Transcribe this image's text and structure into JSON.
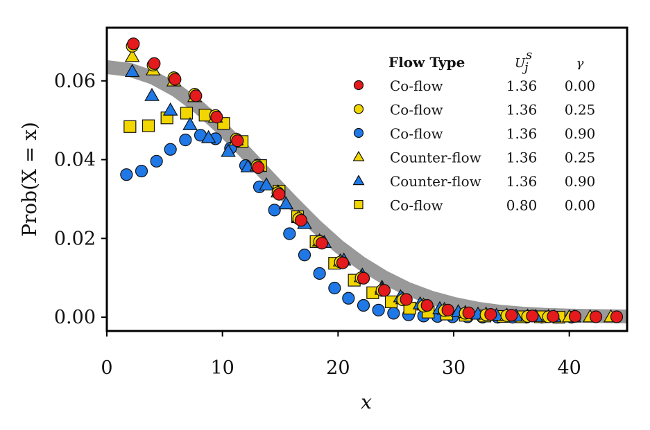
{
  "chart_data": {
    "type": "scatter",
    "xlabel": "x",
    "ylabel": "Prob(X = x)",
    "xlim": [
      0,
      45
    ],
    "ylim": [
      -0.0035,
      0.0735
    ],
    "xticks": [
      0,
      10,
      20,
      30,
      40
    ],
    "yticks": [
      0.0,
      0.02,
      0.04,
      0.06
    ],
    "xtick_labels": [
      "0",
      "10",
      "20",
      "30",
      "40"
    ],
    "ytick_labels": [
      "0.00",
      "0.02",
      "0.04",
      "0.06"
    ],
    "legend_position": "top-right",
    "legend_headers": {
      "flow_type": "Flow Type",
      "u": "U",
      "u_sup": "s",
      "u_sub": "j",
      "gamma": "γ"
    },
    "reference_curve": {
      "label": "gray band",
      "color": "#999999",
      "x": [
        0,
        2,
        4,
        6,
        8,
        10,
        12,
        14,
        16,
        18,
        20,
        22,
        24,
        26,
        28,
        30,
        32,
        34,
        36,
        38,
        40,
        42,
        45
      ],
      "y": [
        0.0635,
        0.0628,
        0.0608,
        0.0576,
        0.0532,
        0.0478,
        0.0418,
        0.0355,
        0.0293,
        0.0234,
        0.0181,
        0.0137,
        0.0101,
        0.0072,
        0.005,
        0.0034,
        0.0022,
        0.0014,
        0.0009,
        0.0006,
        0.0004,
        0.0003,
        0.0002
      ]
    },
    "series": [
      {
        "name": "Co-flow",
        "u": "1.36",
        "gamma": "0.00",
        "marker": "circle",
        "color": "#e41a1c",
        "x": [
          2.3,
          4.1,
          5.9,
          7.7,
          9.5,
          11.3,
          13.1,
          14.9,
          16.8,
          18.6,
          20.4,
          22.2,
          24.0,
          25.9,
          27.7,
          29.5,
          31.3,
          33.2,
          35.0,
          36.8,
          38.6,
          40.5,
          42.3,
          44.1
        ],
        "y": [
          0.0694,
          0.0644,
          0.0604,
          0.0562,
          0.0508,
          0.0448,
          0.038,
          0.0312,
          0.0246,
          0.0188,
          0.0138,
          0.0099,
          0.0068,
          0.0045,
          0.003,
          0.0018,
          0.0011,
          0.0007,
          0.0005,
          0.0003,
          0.0002,
          0.0002,
          0.0001,
          0.0001
        ]
      },
      {
        "name": "Co-flow",
        "u": "1.36",
        "gamma": "0.25",
        "marker": "circle",
        "color": "#f2d600",
        "x": [
          2.2,
          4.0,
          5.8,
          7.6,
          9.4,
          11.2,
          13.0,
          14.8,
          16.6,
          18.4,
          20.2,
          22.0,
          23.8,
          25.6,
          27.4,
          29.2,
          31.0,
          32.8,
          34.6,
          36.4,
          38.2
        ],
        "y": [
          0.0688,
          0.064,
          0.0608,
          0.0566,
          0.0512,
          0.0452,
          0.0384,
          0.0316,
          0.025,
          0.0192,
          0.014,
          0.01,
          0.0068,
          0.0044,
          0.0028,
          0.0017,
          0.001,
          0.0006,
          0.0004,
          0.0002,
          0.0001
        ]
      },
      {
        "name": "Co-flow",
        "u": "1.36",
        "gamma": "0.90",
        "marker": "circle",
        "color": "#1f78e6",
        "x": [
          1.7,
          3.0,
          4.3,
          5.5,
          6.8,
          8.1,
          9.4,
          10.7,
          12.0,
          13.2,
          14.5,
          15.8,
          17.1,
          18.4,
          19.7,
          20.9,
          22.2,
          23.5,
          24.8,
          26.1,
          27.4,
          28.6,
          29.9,
          31.2,
          32.5,
          33.8,
          35.1,
          36.3,
          37.6,
          38.9,
          40.2
        ],
        "y": [
          0.0362,
          0.0371,
          0.0396,
          0.0426,
          0.045,
          0.0462,
          0.0453,
          0.0429,
          0.0385,
          0.0331,
          0.0272,
          0.0212,
          0.0158,
          0.0111,
          0.0074,
          0.0048,
          0.003,
          0.0018,
          0.001,
          0.0006,
          0.0003,
          0.0002,
          0.0001,
          0.0001,
          0.0,
          0.0,
          0.0,
          0.0,
          0.0,
          0.0,
          0.0
        ]
      },
      {
        "name": "Counter-flow",
        "u": "1.36",
        "gamma": "0.25",
        "marker": "triangle",
        "color": "#f2d600",
        "x": [
          2.2,
          4.0,
          5.8,
          7.6,
          9.4,
          11.2,
          13.0,
          14.8,
          16.6,
          18.4,
          20.2,
          22.0,
          23.8,
          25.6,
          27.4,
          29.2,
          31.0,
          32.8,
          34.6,
          36.4,
          38.2,
          40.0,
          41.8,
          43.6
        ],
        "y": [
          0.0662,
          0.0628,
          0.06,
          0.056,
          0.0508,
          0.045,
          0.0385,
          0.0318,
          0.0254,
          0.0194,
          0.0143,
          0.0103,
          0.0071,
          0.0047,
          0.0031,
          0.002,
          0.0012,
          0.0008,
          0.0005,
          0.0003,
          0.0002,
          0.0001,
          0.0001,
          0.0001
        ]
      },
      {
        "name": "Counter-flow",
        "u": "1.36",
        "gamma": "0.90",
        "marker": "triangle",
        "color": "#1f78e6",
        "x": [
          2.2,
          3.9,
          5.5,
          7.2,
          8.8,
          10.5,
          12.2,
          13.8,
          15.5,
          17.1,
          18.8,
          20.5,
          22.1,
          23.8,
          25.4,
          27.1,
          28.8,
          30.4,
          32.1,
          33.7,
          35.4,
          37.1,
          38.7,
          40.4
        ],
        "y": [
          0.0624,
          0.0563,
          0.0526,
          0.0489,
          0.0456,
          0.0421,
          0.0382,
          0.0336,
          0.0288,
          0.0238,
          0.019,
          0.0145,
          0.0107,
          0.0076,
          0.0052,
          0.0034,
          0.0022,
          0.0014,
          0.0008,
          0.0005,
          0.0003,
          0.0002,
          0.0001,
          0.0001
        ]
      },
      {
        "name": "Co-flow",
        "u": "0.80",
        "gamma": "0.00",
        "marker": "square",
        "color": "#f2d600",
        "x": [
          2.0,
          3.6,
          5.2,
          6.9,
          8.5,
          10.1,
          11.7,
          13.3,
          14.9,
          16.5,
          18.1,
          19.7,
          21.4,
          23.0,
          24.6,
          26.2,
          27.8,
          29.4,
          31.0,
          32.7,
          34.3,
          35.9,
          37.5,
          39.1
        ],
        "y": [
          0.0484,
          0.0486,
          0.0506,
          0.0518,
          0.0513,
          0.0492,
          0.0446,
          0.0385,
          0.032,
          0.0255,
          0.0192,
          0.0137,
          0.0094,
          0.0062,
          0.0039,
          0.0023,
          0.0013,
          0.0008,
          0.0005,
          0.0003,
          0.0002,
          0.0001,
          0.0001,
          0.0
        ]
      }
    ]
  }
}
